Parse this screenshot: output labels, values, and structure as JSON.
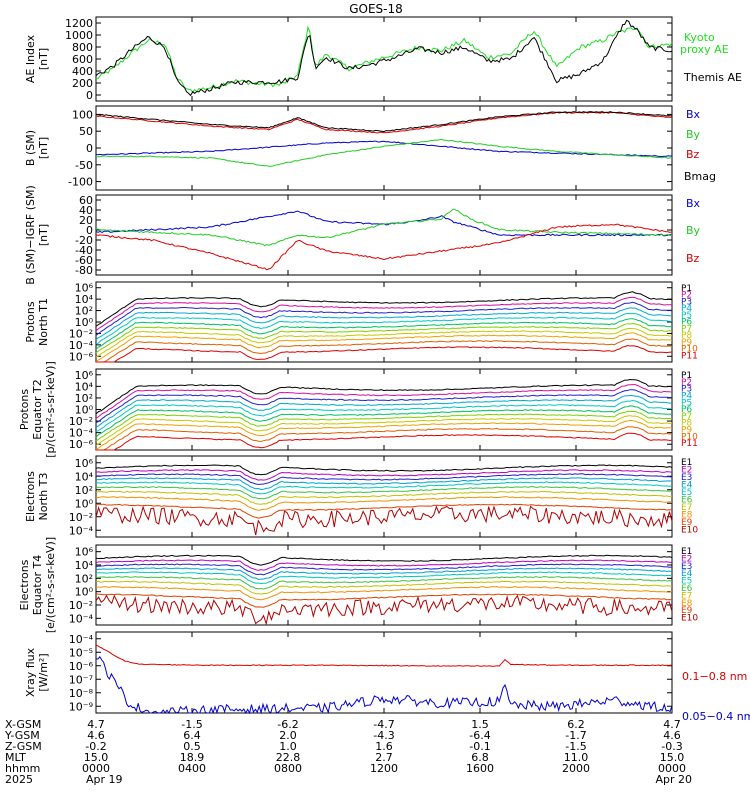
{
  "title": "GOES-18",
  "colors": {
    "ae_kyoto": "#22dd22",
    "ae_themis": "#000000",
    "bx": "#0000cc",
    "by": "#22cc22",
    "bz": "#dd0000",
    "bmag": "#000000",
    "xray_long": "#dd0000",
    "xray_short": "#0000cc"
  },
  "chart_data": [
    {
      "type": "line",
      "panel": "ae",
      "ylabel": [
        "AE Index",
        "[nT]"
      ],
      "yticks": [
        "0",
        "200",
        "400",
        "600",
        "800",
        "1000",
        "1200"
      ],
      "ylim": [
        0,
        1250
      ],
      "series": [
        {
          "name": "Kyoto proxy AE",
          "color": "#22dd22",
          "x": [
            0,
            0.03,
            0.06,
            0.09,
            0.12,
            0.14,
            0.16,
            0.2,
            0.24,
            0.28,
            0.32,
            0.35,
            0.37,
            0.38,
            0.4,
            0.44,
            0.48,
            0.52,
            0.56,
            0.6,
            0.64,
            0.68,
            0.72,
            0.76,
            0.8,
            0.84,
            0.88,
            0.9,
            0.92,
            0.94,
            0.96,
            1.0
          ],
          "y": [
            330,
            480,
            700,
            900,
            850,
            350,
            150,
            200,
            300,
            260,
            240,
            380,
            1150,
            500,
            700,
            480,
            600,
            700,
            800,
            750,
            900,
            650,
            700,
            1050,
            500,
            800,
            900,
            1000,
            1050,
            1100,
            800,
            850
          ]
        },
        {
          "name": "Themis AE",
          "color": "#000000",
          "x": [
            0,
            0.03,
            0.06,
            0.09,
            0.12,
            0.14,
            0.16,
            0.2,
            0.24,
            0.28,
            0.32,
            0.35,
            0.37,
            0.38,
            0.4,
            0.44,
            0.48,
            0.52,
            0.56,
            0.6,
            0.64,
            0.68,
            0.72,
            0.76,
            0.8,
            0.84,
            0.88,
            0.9,
            0.92,
            0.94,
            0.96,
            1.0
          ],
          "y": [
            380,
            520,
            750,
            950,
            800,
            300,
            100,
            180,
            280,
            280,
            290,
            350,
            1050,
            500,
            650,
            480,
            550,
            650,
            780,
            720,
            800,
            600,
            620,
            950,
            300,
            400,
            600,
            900,
            1200,
            1050,
            800,
            750
          ]
        }
      ]
    },
    {
      "type": "line",
      "panel": "b_sm",
      "ylabel": [
        "B (SM)",
        "[nT]"
      ],
      "yticks": [
        "-100",
        "-50",
        "0",
        "50",
        "100"
      ],
      "ylim": [
        -120,
        130
      ],
      "series": [
        {
          "name": "Bx",
          "color": "#0000cc",
          "x": [
            0,
            0.2,
            0.4,
            0.5,
            0.6,
            0.7,
            0.8,
            1.0
          ],
          "y": [
            -15,
            -5,
            20,
            25,
            10,
            -5,
            -10,
            -20
          ]
        },
        {
          "name": "By",
          "color": "#22cc22",
          "x": [
            0,
            0.1,
            0.2,
            0.3,
            0.4,
            0.5,
            0.6,
            0.7,
            0.8,
            1.0
          ],
          "y": [
            -20,
            -20,
            -25,
            -50,
            -15,
            10,
            30,
            10,
            -5,
            -25
          ]
        },
        {
          "name": "Bz",
          "color": "#dd0000",
          "x": [
            0,
            0.1,
            0.2,
            0.3,
            0.35,
            0.4,
            0.5,
            0.6,
            0.7,
            0.8,
            0.9,
            1.0
          ],
          "y": [
            100,
            85,
            70,
            60,
            90,
            60,
            50,
            70,
            95,
            110,
            110,
            95
          ]
        },
        {
          "name": "Bmag",
          "color": "#000000",
          "x": [
            0,
            0.1,
            0.2,
            0.3,
            0.35,
            0.4,
            0.5,
            0.6,
            0.7,
            0.8,
            0.9,
            1.0
          ],
          "y": [
            105,
            90,
            75,
            65,
            95,
            65,
            55,
            75,
            98,
            112,
            112,
            100
          ]
        }
      ]
    },
    {
      "type": "line",
      "panel": "b_minus_igrf",
      "ylabel": [
        "B (SM)−IGRF (SM)",
        "[nT]"
      ],
      "yticks": [
        "-80",
        "-60",
        "-40",
        "-20",
        "0",
        "20",
        "40",
        "60"
      ],
      "ylim": [
        -85,
        65
      ],
      "series": [
        {
          "name": "Bx",
          "color": "#0000cc",
          "x": [
            0,
            0.2,
            0.35,
            0.4,
            0.5,
            0.55,
            0.6,
            0.62,
            0.7,
            1.0
          ],
          "y": [
            -5,
            5,
            35,
            15,
            10,
            15,
            25,
            15,
            -10,
            -10
          ]
        },
        {
          "name": "By",
          "color": "#22cc22",
          "x": [
            0,
            0.2,
            0.3,
            0.35,
            0.4,
            0.5,
            0.6,
            0.62,
            0.65,
            0.7,
            0.8,
            1.0
          ],
          "y": [
            0,
            -10,
            -30,
            -10,
            -15,
            10,
            20,
            40,
            20,
            0,
            -5,
            -10
          ]
        },
        {
          "name": "Bz",
          "color": "#dd0000",
          "x": [
            0,
            0.1,
            0.2,
            0.25,
            0.3,
            0.35,
            0.4,
            0.5,
            0.6,
            0.7,
            0.8,
            0.9,
            1.0
          ],
          "y": [
            -10,
            -20,
            -45,
            -60,
            -75,
            -20,
            -40,
            -55,
            -40,
            -25,
            5,
            10,
            -5
          ]
        }
      ]
    },
    {
      "type": "line",
      "panel": "protons_t1",
      "ylabel": [
        "Protons",
        "North T1"
      ],
      "yticks": [
        "10⁻⁶",
        "10⁻⁴",
        "10⁻²",
        "10⁰",
        "10²",
        "10⁴",
        "10⁶"
      ],
      "ylim_log10": [
        -7,
        6
      ],
      "channels": [
        "P1",
        "P2",
        "P3",
        "P4",
        "P5",
        "P6",
        "P7",
        "P8",
        "P9",
        "P10",
        "P11"
      ],
      "levels_log10": [
        3.0,
        2.2,
        1.4,
        0.6,
        -0.2,
        -1.0,
        -1.7,
        -2.4,
        -3.1,
        -4.0,
        -5.0
      ]
    },
    {
      "type": "line",
      "panel": "protons_t2",
      "ylabel": [
        "Protons",
        "Equator T2",
        "[p/(cm²-s-sr-keV)]"
      ],
      "yticks": [
        "10⁻⁶",
        "10⁻⁴",
        "10⁻²",
        "10⁰",
        "10²",
        "10⁴",
        "10⁶"
      ],
      "ylim_log10": [
        -7,
        6
      ],
      "channels": [
        "P1",
        "P2",
        "P3",
        "P4",
        "P5",
        "P6",
        "P7",
        "P8",
        "P9",
        "P10",
        "P11"
      ],
      "levels_log10": [
        3.0,
        2.2,
        1.4,
        0.6,
        -0.2,
        -1.0,
        -1.7,
        -2.4,
        -3.1,
        -4.0,
        -5.0
      ]
    },
    {
      "type": "line",
      "panel": "electrons_t3",
      "ylabel": [
        "Electrons",
        "North T3"
      ],
      "yticks": [
        "10⁻⁴",
        "10⁻²",
        "10⁰",
        "10²",
        "10⁴",
        "10⁶"
      ],
      "ylim_log10": [
        -5,
        7
      ],
      "channels": [
        "E1",
        "E2",
        "E3",
        "E4",
        "E5",
        "E6",
        "E7",
        "E8",
        "E9",
        "E10"
      ],
      "levels_log10": [
        5.2,
        4.5,
        3.9,
        3.3,
        2.7,
        2.0,
        1.3,
        0.5,
        -0.6,
        -2.0
      ]
    },
    {
      "type": "line",
      "panel": "electrons_t4",
      "ylabel": [
        "Electrons",
        "Equator T4",
        "[e/(cm²-s-sr-keV)]"
      ],
      "yticks": [
        "10⁻⁴",
        "10⁻²",
        "10⁰",
        "10²",
        "10⁴",
        "10⁶"
      ],
      "ylim_log10": [
        -5,
        7
      ],
      "channels": [
        "E1",
        "E2",
        "E3",
        "E4",
        "E5",
        "E6",
        "E7",
        "E8",
        "E9",
        "E10"
      ],
      "levels_log10": [
        5.0,
        4.3,
        3.7,
        3.1,
        2.5,
        1.8,
        1.1,
        0.3,
        -0.8,
        -2.2
      ]
    },
    {
      "type": "line",
      "panel": "xray",
      "ylabel": [
        "Xray flux",
        "[W/m²]"
      ],
      "yticks": [
        "10⁻⁹",
        "10⁻⁸",
        "10⁻⁷",
        "10⁻⁶",
        "10⁻⁵",
        "10⁻⁴"
      ],
      "ylim_log10": [
        -9,
        -4
      ],
      "series": [
        {
          "name": "0.1−0.8 nm",
          "color": "#dd0000",
          "x": [
            0,
            0.02,
            0.05,
            0.08,
            0.2,
            0.4,
            0.6,
            0.7,
            0.71,
            0.72,
            0.8,
            1.0
          ],
          "y_log10": [
            -4.8,
            -5.2,
            -5.8,
            -6.0,
            -6.05,
            -6.05,
            -6.1,
            -6.1,
            -5.7,
            -6.0,
            -6.05,
            -6.05
          ]
        },
        {
          "name": "0.05−0.4 nm",
          "color": "#0000cc",
          "x": [
            0,
            0.03,
            0.06,
            0.1,
            0.2,
            0.4,
            0.5,
            0.6,
            0.7,
            0.71,
            0.72,
            0.8,
            0.9,
            1.0
          ],
          "y_log10": [
            -5.4,
            -7.0,
            -8.5,
            -9.0,
            -8.8,
            -8.7,
            -8.1,
            -8.4,
            -8.3,
            -7.4,
            -8.5,
            -8.6,
            -8.2,
            -8.8
          ]
        }
      ]
    }
  ],
  "legends": {
    "ae": [
      "Kyoto",
      "proxy AE",
      "Themis AE"
    ],
    "b_sm": [
      "Bx",
      "By",
      "Bz",
      "Bmag"
    ],
    "b_minus_igrf": [
      "Bx",
      "By",
      "Bz"
    ],
    "xray": [
      "0.1−0.8 nm",
      "0.05−0.4 nm"
    ]
  },
  "orbit_table": {
    "row_labels": [
      "X-GSM",
      "Y-GSM",
      "Z-GSM",
      "MLT",
      "hhmm",
      "2025"
    ],
    "columns": [
      [
        "4.7",
        "4.6",
        "-0.2",
        "15.0",
        "0000",
        "Apr 19"
      ],
      [
        "-1.5",
        "6.4",
        "0.5",
        "18.9",
        "0400",
        ""
      ],
      [
        "-6.2",
        "2.0",
        "1.0",
        "22.8",
        "0800",
        ""
      ],
      [
        "-4.7",
        "-4.3",
        "1.6",
        "2.7",
        "1200",
        ""
      ],
      [
        "1.5",
        "-6.4",
        "-0.1",
        "6.8",
        "1600",
        ""
      ],
      [
        "6.2",
        "-1.7",
        "-1.5",
        "11.0",
        "2000",
        ""
      ],
      [
        "4.7",
        "4.6",
        "-0.3",
        "15.0",
        "0000",
        "Apr 20"
      ]
    ]
  }
}
